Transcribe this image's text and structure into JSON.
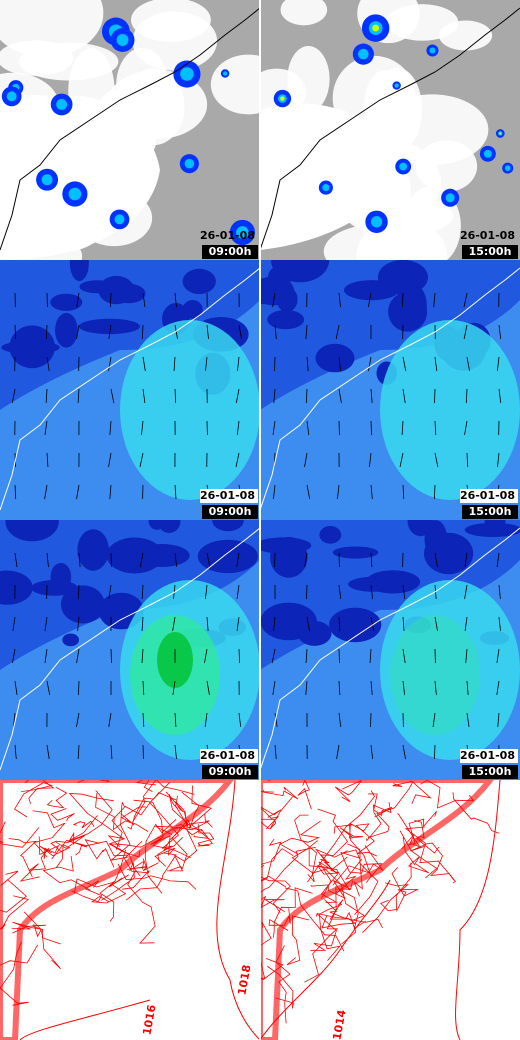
{
  "panels": [
    {
      "kind": "satellite",
      "date": "26-01-08",
      "time": "09:00h"
    },
    {
      "kind": "satellite",
      "date": "26-01-08",
      "time": "15:00h"
    },
    {
      "kind": "field",
      "date": "26-01-08",
      "time": "09:00h"
    },
    {
      "kind": "field",
      "date": "26-01-08",
      "time": "15:00h"
    },
    {
      "kind": "field-strong",
      "date": "26-01-08",
      "time": "09:00h"
    },
    {
      "kind": "field-strong",
      "date": "26-01-08",
      "time": "15:00h"
    },
    {
      "kind": "pressure",
      "contour_labels": [
        "1018",
        "1016"
      ]
    },
    {
      "kind": "pressure",
      "contour_labels": [
        "1014"
      ]
    }
  ]
}
